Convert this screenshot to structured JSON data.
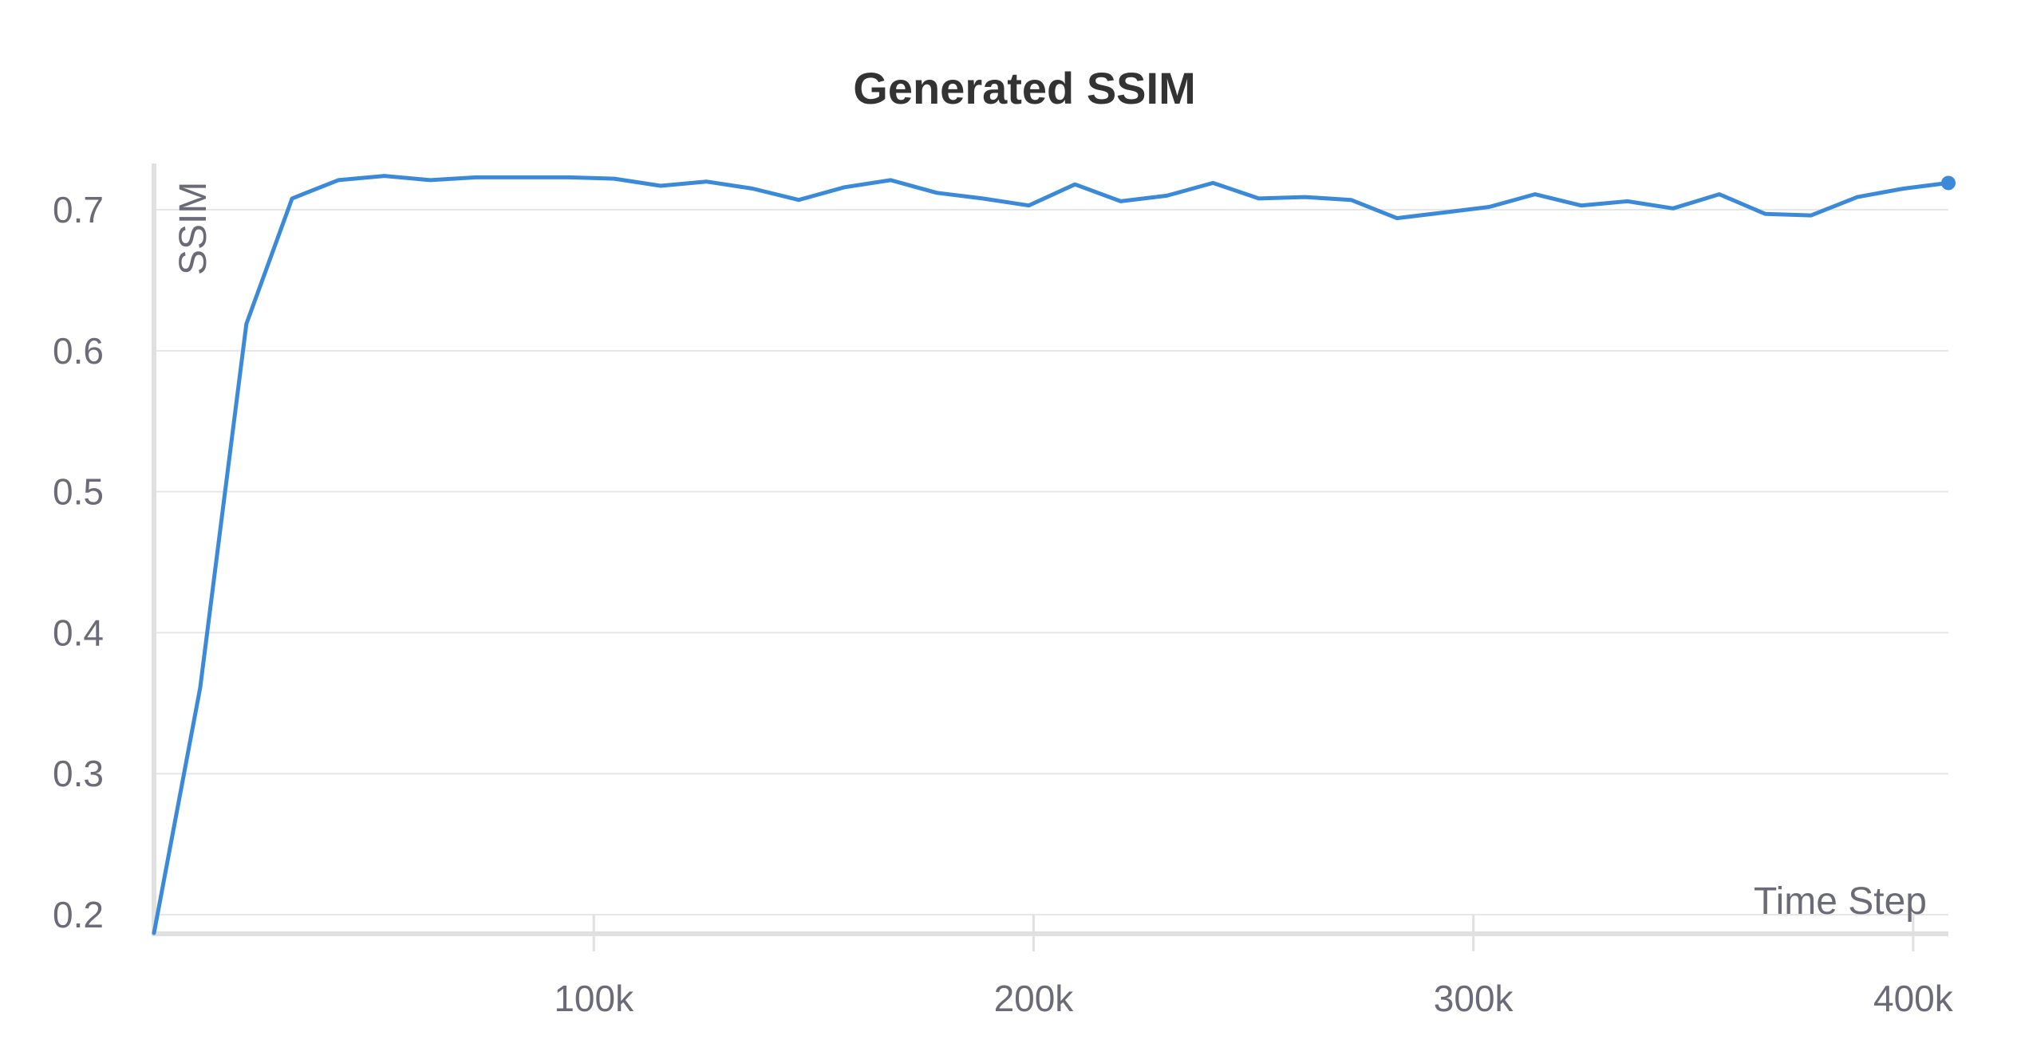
{
  "chart_data": {
    "type": "line",
    "title": "Generated SSIM",
    "xlabel": "Time Step",
    "ylabel": "SSIM",
    "xlim": [
      0,
      408000
    ],
    "ylim": [
      0.187,
      0.73
    ],
    "x_ticks": [
      100000,
      200000,
      300000,
      400000
    ],
    "x_tick_labels": [
      "100k",
      "200k",
      "300k",
      "400k"
    ],
    "y_ticks": [
      0.2,
      0.3,
      0.4,
      0.5,
      0.6,
      0.7
    ],
    "y_tick_labels": [
      "0.2",
      "0.3",
      "0.4",
      "0.5",
      "0.6",
      "0.7"
    ],
    "grid": true,
    "legend": "none",
    "series": [
      {
        "color": "#3b8ad9",
        "x": [
          0,
          10500,
          21000,
          31400,
          41900,
          52400,
          62800,
          73300,
          83800,
          94200,
          104700,
          115200,
          125600,
          136100,
          146600,
          157000,
          167500,
          178000,
          188400,
          198900,
          209400,
          219800,
          230300,
          240800,
          251200,
          261700,
          272200,
          282600,
          293100,
          303600,
          314000,
          324500,
          335000,
          345400,
          355900,
          366400,
          376800,
          387300,
          397800,
          408000
        ],
        "values": [
          0.187,
          0.361,
          0.619,
          0.708,
          0.721,
          0.724,
          0.721,
          0.723,
          0.723,
          0.723,
          0.722,
          0.717,
          0.72,
          0.715,
          0.707,
          0.716,
          0.721,
          0.712,
          0.708,
          0.703,
          0.718,
          0.706,
          0.71,
          0.719,
          0.708,
          0.709,
          0.707,
          0.694,
          0.698,
          0.702,
          0.711,
          0.703,
          0.706,
          0.701,
          0.711,
          0.697,
          0.696,
          0.709,
          0.715,
          0.719
        ]
      }
    ]
  }
}
